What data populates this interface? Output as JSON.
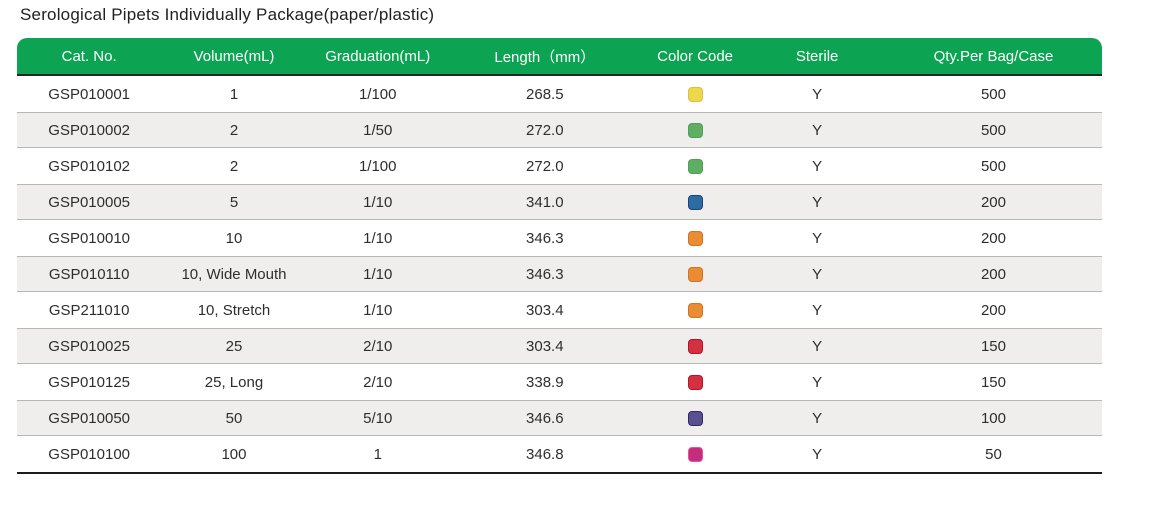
{
  "title": "Serological Pipets Individually Package(paper/plastic)",
  "theme": {
    "header_bg": "#0ca452",
    "header_text": "#ffffff",
    "stripe_bg": "#efeeec",
    "stripe_border": "#b7b7b5",
    "bottom_border": "#1d1d1d",
    "row_text": "#2e2e2e"
  },
  "table": {
    "columns": [
      "Cat. No.",
      "Volume(mL)",
      "Graduation(mL)",
      "Length（mm）",
      "Color Code",
      "Sterile",
      "Qty.Per Bag/Case"
    ],
    "swatches": {
      "yellow": {
        "fill": "#eed64d",
        "border": "#d9c23e"
      },
      "green": {
        "fill": "#5fae63",
        "border": "#4f9f55"
      },
      "blue": {
        "fill": "#2d6ba5",
        "border": "#1c4078"
      },
      "orange": {
        "fill": "#e98c33",
        "border": "#d07325"
      },
      "red": {
        "fill": "#d5303f",
        "border": "#b31428"
      },
      "purple": {
        "fill": "#585091",
        "border": "#2f2a63"
      },
      "magenta": {
        "fill": "#c22e7d",
        "border": "#ea4f9a"
      }
    },
    "rows": [
      {
        "cat_no": "GSP010001",
        "volume": "1",
        "graduation": "1/100",
        "length": "268.5",
        "color_code": "yellow",
        "sterile": "Y",
        "qty": "500"
      },
      {
        "cat_no": "GSP010002",
        "volume": "2",
        "graduation": "1/50",
        "length": "272.0",
        "color_code": "green",
        "sterile": "Y",
        "qty": "500"
      },
      {
        "cat_no": "GSP010102",
        "volume": "2",
        "graduation": "1/100",
        "length": "272.0",
        "color_code": "green",
        "sterile": "Y",
        "qty": "500"
      },
      {
        "cat_no": "GSP010005",
        "volume": "5",
        "graduation": "1/10",
        "length": "341.0",
        "color_code": "blue",
        "sterile": "Y",
        "qty": "200"
      },
      {
        "cat_no": "GSP010010",
        "volume": "10",
        "graduation": "1/10",
        "length": "346.3",
        "color_code": "orange",
        "sterile": "Y",
        "qty": "200"
      },
      {
        "cat_no": "GSP010110",
        "volume": "10, Wide Mouth",
        "graduation": "1/10",
        "length": "346.3",
        "color_code": "orange",
        "sterile": "Y",
        "qty": "200"
      },
      {
        "cat_no": "GSP211010",
        "volume": "10, Stretch",
        "graduation": "1/10",
        "length": "303.4",
        "color_code": "orange",
        "sterile": "Y",
        "qty": "200"
      },
      {
        "cat_no": "GSP010025",
        "volume": "25",
        "graduation": "2/10",
        "length": "303.4",
        "color_code": "red",
        "sterile": "Y",
        "qty": "150"
      },
      {
        "cat_no": "GSP010125",
        "volume": "25, Long",
        "graduation": "2/10",
        "length": "338.9",
        "color_code": "red",
        "sterile": "Y",
        "qty": "150"
      },
      {
        "cat_no": "GSP010050",
        "volume": "50",
        "graduation": "5/10",
        "length": "346.6",
        "color_code": "purple",
        "sterile": "Y",
        "qty": "100"
      },
      {
        "cat_no": "GSP010100",
        "volume": "100",
        "graduation": "1",
        "length": "346.8",
        "color_code": "magenta",
        "sterile": "Y",
        "qty": "50"
      }
    ]
  }
}
